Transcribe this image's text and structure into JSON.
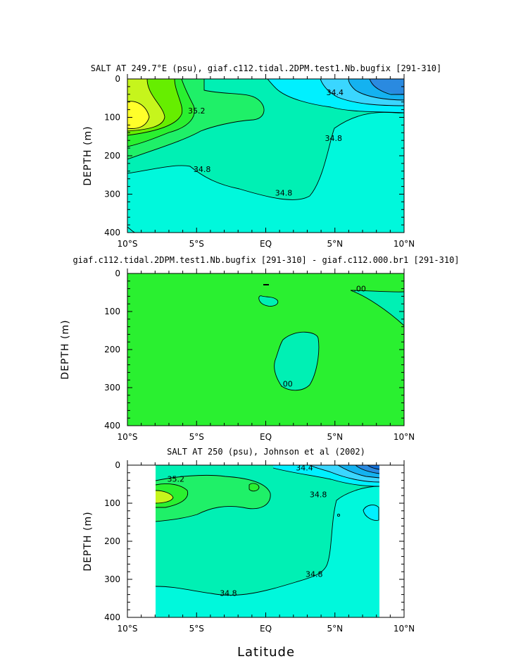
{
  "colors": {
    "yellow": "#ffff2a",
    "yellowgreen": "#c6f51c",
    "green": "#66ee00",
    "bright_green": "#2af030",
    "green2": "#1ff068",
    "mint": "#00f0b4",
    "aqua": "#00f8dc",
    "cyan": "#00f0ff",
    "lightblue": "#3ad6ff",
    "blue": "#14b2f0",
    "deep": "#2a8ae0",
    "deepest": "#1470d8",
    "line": "#000000"
  },
  "chart_data": [
    {
      "type": "heatmap",
      "title": "SALT AT 249.7°E (psu), giaf.c112.tidal.2DPM.test1.Nb.bugfix [291-310]",
      "xlabel": "",
      "ylabel": "DEPTH (m)",
      "x_ticks": [
        "10°S",
        "5°S",
        "EQ",
        "5°N",
        "10°N"
      ],
      "y_ticks": [
        "0",
        "100",
        "200",
        "300",
        "400"
      ],
      "xlim": [
        -10,
        10
      ],
      "ylim": [
        400,
        0
      ],
      "contour_labels": [
        {
          "text": "34.4",
          "lat": 5.0,
          "depth": 40
        },
        {
          "text": "35.2",
          "lat": -5.0,
          "depth": 88
        },
        {
          "text": "34.8",
          "lat": 4.9,
          "depth": 160
        },
        {
          "text": "34.8",
          "lat": -4.6,
          "depth": 240
        },
        {
          "text": "34.8",
          "lat": 1.3,
          "depth": 302
        }
      ]
    },
    {
      "type": "heatmap",
      "title": "giaf.c112.tidal.2DPM.test1.Nb.bugfix [291-310] - giaf.c112.000.br1 [291-310]",
      "xlabel": "",
      "ylabel": "DEPTH (m)",
      "x_ticks": [
        "10°S",
        "5°S",
        "EQ",
        "5°N",
        "10°N"
      ],
      "y_ticks": [
        "0",
        "100",
        "200",
        "300",
        "400"
      ],
      "xlim": [
        -10,
        10
      ],
      "ylim": [
        400,
        0
      ],
      "contour_labels": [
        {
          "text": ".00",
          "lat": 6.8,
          "depth": 45
        },
        {
          "text": ".00",
          "lat": 1.5,
          "depth": 295
        }
      ]
    },
    {
      "type": "heatmap",
      "title": "SALT AT 250 (psu), Johnson et al (2002)",
      "xlabel": "Latitude",
      "ylabel": "DEPTH (m)",
      "x_ticks": [
        "10°S",
        "5°S",
        "EQ",
        "5°N",
        "10°N"
      ],
      "y_ticks": [
        "0",
        "100",
        "200",
        "300",
        "400"
      ],
      "xlim": [
        -10,
        10
      ],
      "ylim": [
        400,
        0
      ],
      "contour_labels": [
        {
          "text": "34.4",
          "lat": 2.8,
          "depth": 12
        },
        {
          "text": "35.2",
          "lat": -6.5,
          "depth": 42
        },
        {
          "text": "34.8",
          "lat": 3.8,
          "depth": 82
        },
        {
          "text": "34.8",
          "lat": 3.5,
          "depth": 292
        },
        {
          "text": "34.8",
          "lat": -2.7,
          "depth": 342
        }
      ]
    }
  ]
}
